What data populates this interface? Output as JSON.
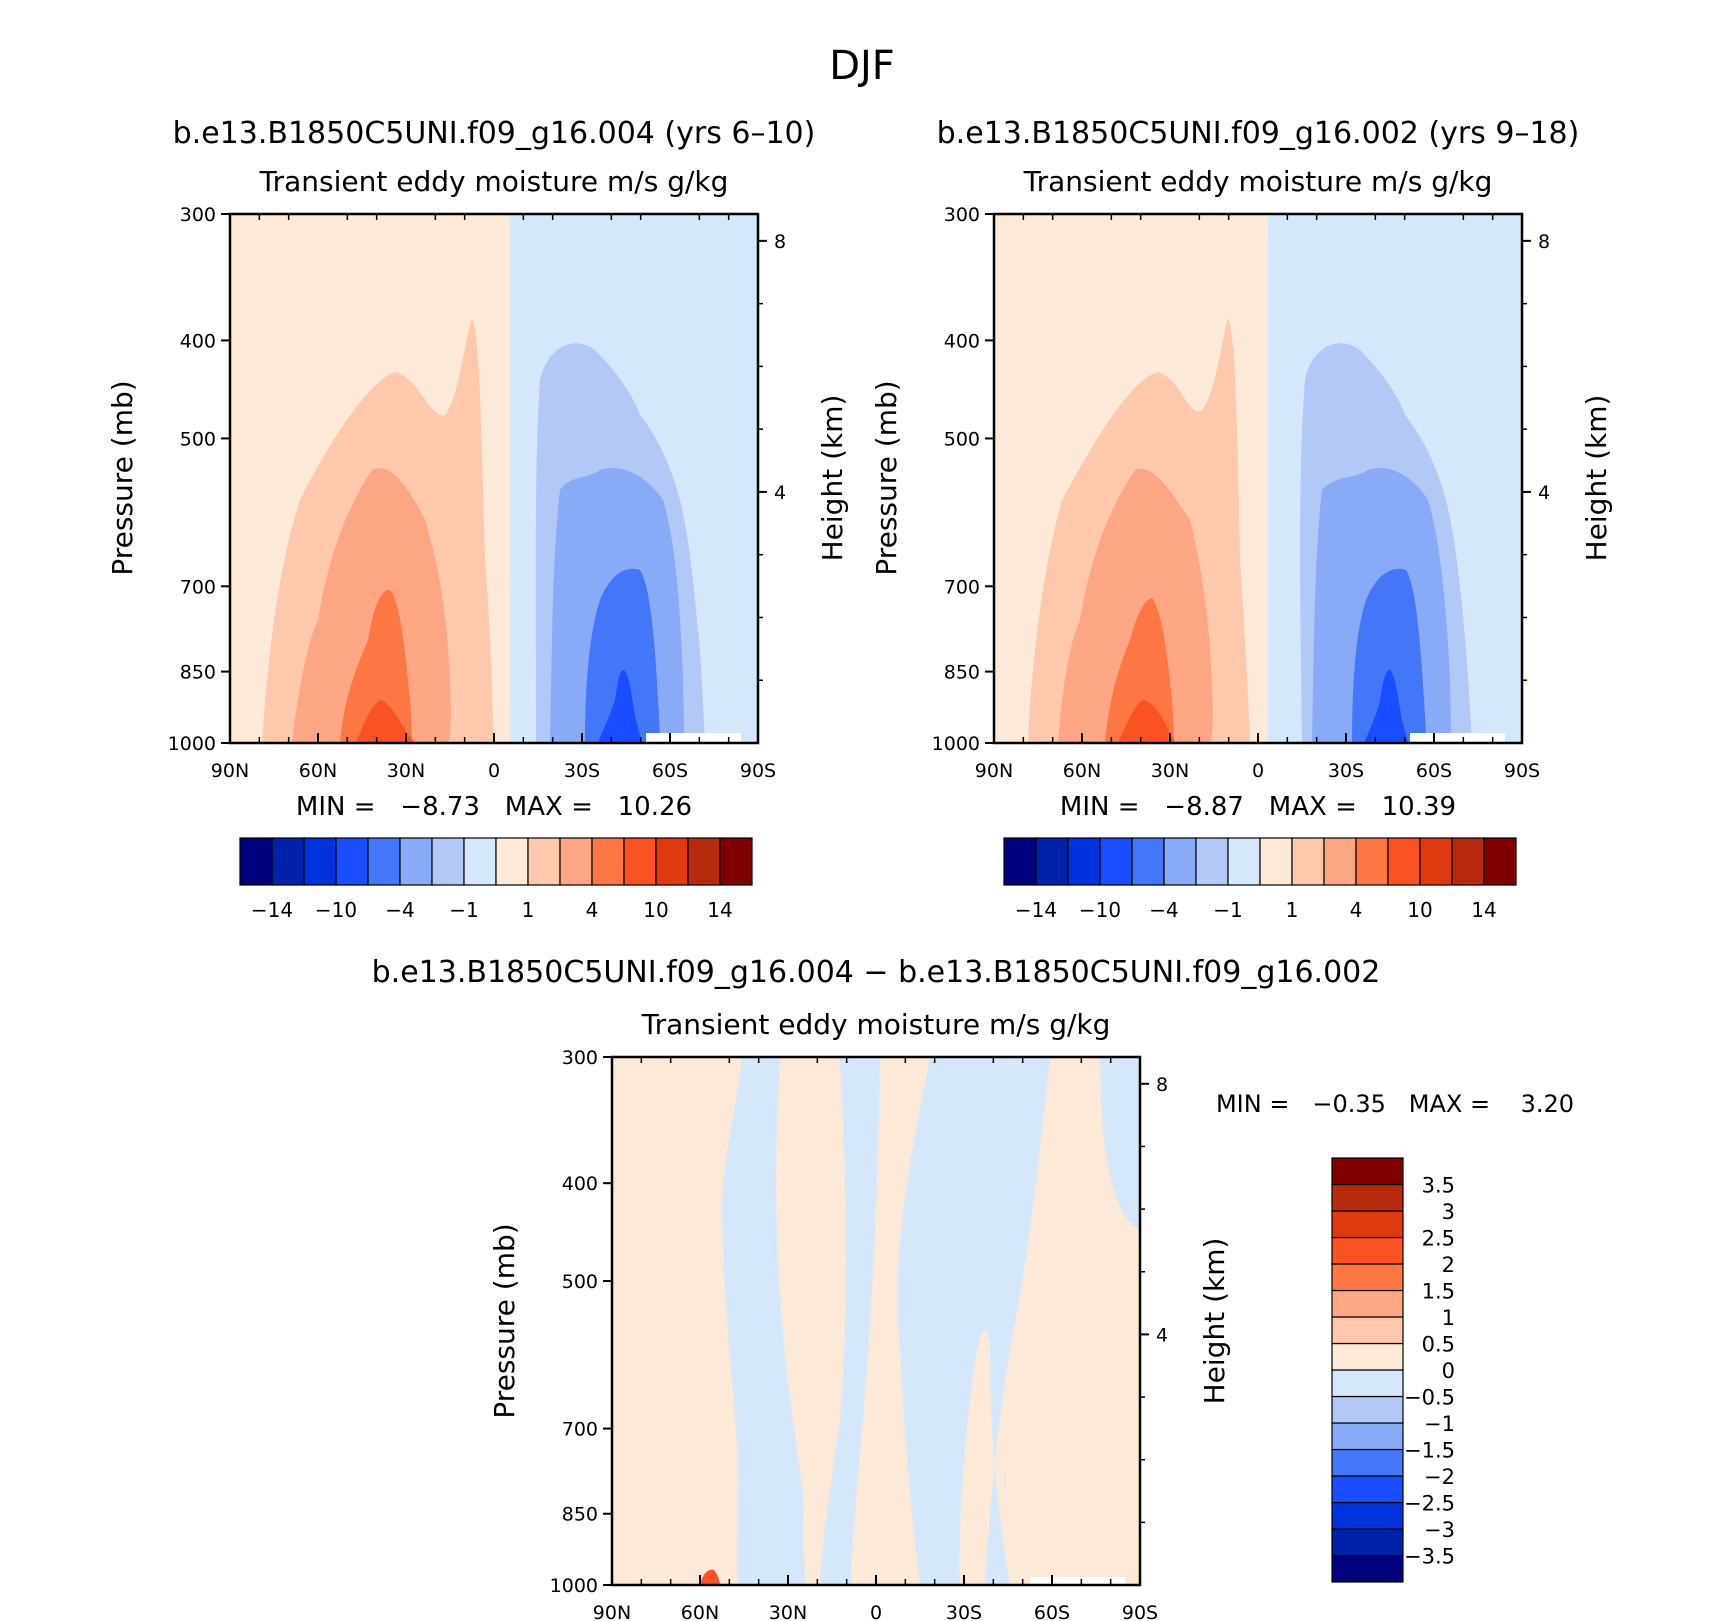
{
  "page_title": "DJF",
  "panels": {
    "left": {
      "case_title": "b.e13.B1850C5UNI.f09_g16.004 (yrs 6–10)",
      "subtitle": "Transient eddy moisture m/s g/kg",
      "ylabel": "Pressure (mb)",
      "ylabel_right": "Height (km)",
      "stats": "MIN =   −8.73   MAX =   10.26"
    },
    "right": {
      "case_title": "b.e13.B1850C5UNI.f09_g16.002 (yrs 9–18)",
      "subtitle": "Transient eddy moisture m/s g/kg",
      "ylabel": "Pressure (mb)",
      "ylabel_right": "Height (km)",
      "stats": "MIN =   −8.87   MAX =   10.39"
    },
    "bottom": {
      "case_title": "b.e13.B1850C5UNI.f09_g16.004 − b.e13.B1850C5UNI.f09_g16.002",
      "subtitle": "Transient eddy moisture m/s g/kg",
      "ylabel": "Pressure (mb)",
      "ylabel_right": "Height (km)",
      "stats": "MIN =   −0.35   MAX =    3.20"
    }
  },
  "colorbar_main": {
    "colors": [
      "#00007f",
      "#0022aa",
      "#0033dd",
      "#1a4dff",
      "#4477f7",
      "#88aaf7",
      "#b2c8f7",
      "#d5e7fa",
      "#fde9d7",
      "#fdc8ac",
      "#fca684",
      "#fd7745",
      "#fb5224",
      "#e03a10",
      "#b82a0e",
      "#800000"
    ],
    "tick_labels": [
      "−14",
      "−10",
      "−4",
      "−1",
      "1",
      "4",
      "10",
      "14"
    ]
  },
  "colorbar_diff": {
    "colors": [
      "#00007f",
      "#0022aa",
      "#0033dd",
      "#1a4dff",
      "#4477f7",
      "#88aaf7",
      "#b2c8f7",
      "#d5e7fa",
      "#fde9d7",
      "#fdc8ac",
      "#fca684",
      "#fd7745",
      "#fb5224",
      "#e03a10",
      "#b82a0e",
      "#800000"
    ],
    "tick_labels": [
      "−3.5",
      "−3",
      "−2.5",
      "−2",
      "−1.5",
      "−1",
      "−0.5",
      "0",
      "0.5",
      "1",
      "1.5",
      "2",
      "2.5",
      "3",
      "3.5"
    ]
  },
  "chart_data": [
    {
      "type": "heatmap",
      "title": "b.e13.B1850C5UNI.f09_g16.004 (yrs 6–10)",
      "subtitle": "Transient eddy moisture m/s g/kg",
      "xlabel": "",
      "ylabel": "Pressure (mb)",
      "ylabel_right": "Height (km)",
      "x_tick_labels": [
        "90N",
        "60N",
        "30N",
        "0",
        "30S",
        "60S",
        "90S"
      ],
      "y_tick_labels": [
        "300",
        "400",
        "500",
        "700",
        "850",
        "1000"
      ],
      "y_right_tick_labels": [
        "8",
        "4"
      ],
      "y_scale": "log",
      "ylim": [
        1000,
        300
      ],
      "min": -8.73,
      "max": 10.26,
      "features": [
        {
          "sign": "positive",
          "region": "0–90N, full column",
          "peak_lat": "35N",
          "peak_level_mb": 1000
        },
        {
          "sign": "negative",
          "region": "0–90S, full column",
          "peak_lat": "45S",
          "peak_level_mb": 1000
        }
      ]
    },
    {
      "type": "heatmap",
      "title": "b.e13.B1850C5UNI.f09_g16.002 (yrs 9–18)",
      "subtitle": "Transient eddy moisture m/s g/kg",
      "xlabel": "",
      "ylabel": "Pressure (mb)",
      "ylabel_right": "Height (km)",
      "x_tick_labels": [
        "90N",
        "60N",
        "30N",
        "0",
        "30S",
        "60S",
        "90S"
      ],
      "y_tick_labels": [
        "300",
        "400",
        "500",
        "700",
        "850",
        "1000"
      ],
      "y_right_tick_labels": [
        "8",
        "4"
      ],
      "y_scale": "log",
      "ylim": [
        1000,
        300
      ],
      "min": -8.87,
      "max": 10.39,
      "features": [
        {
          "sign": "positive",
          "region": "0–90N, full column",
          "peak_lat": "35N",
          "peak_level_mb": 1000
        },
        {
          "sign": "negative",
          "region": "0–90S, full column",
          "peak_lat": "45S",
          "peak_level_mb": 1000
        }
      ]
    },
    {
      "type": "heatmap",
      "title": "b.e13.B1850C5UNI.f09_g16.004 − b.e13.B1850C5UNI.f09_g16.002",
      "subtitle": "Transient eddy moisture m/s g/kg",
      "xlabel": "",
      "ylabel": "Pressure (mb)",
      "ylabel_right": "Height (km)",
      "x_tick_labels": [
        "90N",
        "60N",
        "30N",
        "0",
        "30S",
        "60S",
        "90S"
      ],
      "y_tick_labels": [
        "300",
        "400",
        "500",
        "700",
        "850",
        "1000"
      ],
      "y_right_tick_labels": [
        "8",
        "4"
      ],
      "y_scale": "log",
      "ylim": [
        1000,
        300
      ],
      "min": -0.35,
      "max": 3.2,
      "features": [
        {
          "sign": "positive",
          "bin": "0–0.5",
          "region": "90N–45N"
        },
        {
          "sign": "negative",
          "bin": "-0.5–0",
          "region": "45N–15N"
        },
        {
          "sign": "positive",
          "bin": "0–0.5",
          "region": "30N–20N narrow"
        },
        {
          "sign": "positive",
          "bin": "0–0.5",
          "region": "5N–40S"
        },
        {
          "sign": "negative",
          "bin": "-0.5–0",
          "region": "40S–60S"
        },
        {
          "sign": "positive",
          "bin": "0–0.5",
          "region": "60S–85S"
        },
        {
          "sign": "positive",
          "bin": "2.5–3.5",
          "region": "near 55N at 1000 mb"
        }
      ]
    }
  ]
}
